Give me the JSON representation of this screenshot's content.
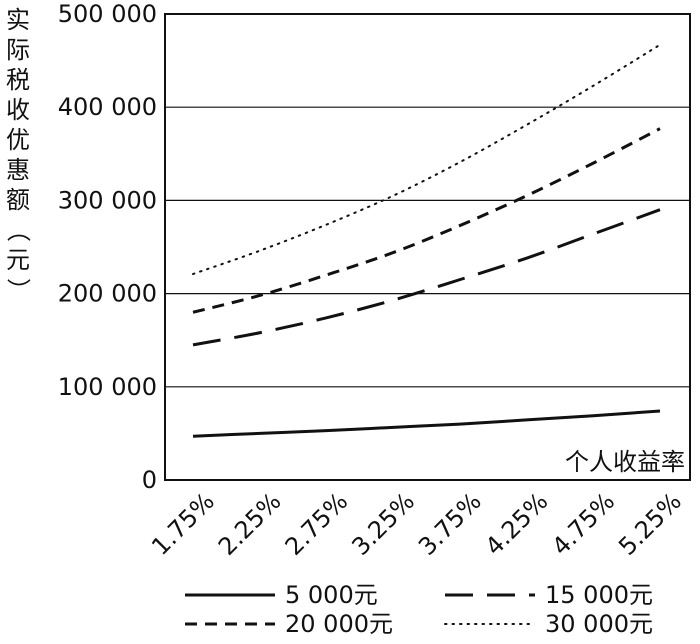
{
  "chart_data": {
    "type": "line",
    "ylabel": "实际税收优惠额（元）",
    "xlabel": "个人收益率",
    "categories": [
      "1.75%",
      "2.25%",
      "2.75%",
      "3.25%",
      "3.75%",
      "4.25%",
      "4.75%",
      "5.25%"
    ],
    "ylim": [
      0,
      500000
    ],
    "y_ticks": [
      "0",
      "100 000",
      "200 000",
      "300 000",
      "400 000",
      "500 000"
    ],
    "grid": "horizontal",
    "legend_position": "bottom",
    "series": [
      {
        "name": "5 000元",
        "style": "solid",
        "values": [
          47000,
          50000,
          53000,
          56500,
          60000,
          64500,
          69000,
          74000
        ]
      },
      {
        "name": "15 000元",
        "style": "long-dash",
        "values": [
          145000,
          158000,
          174000,
          193000,
          215000,
          238000,
          264000,
          290000
        ]
      },
      {
        "name": "20 000元",
        "style": "short-dash",
        "values": [
          180000,
          198000,
          220000,
          244000,
          273000,
          305000,
          340000,
          377000
        ]
      },
      {
        "name": "30 000元",
        "style": "dotted",
        "values": [
          221000,
          246000,
          274000,
          305000,
          341000,
          381000,
          423000,
          467000
        ]
      }
    ]
  }
}
